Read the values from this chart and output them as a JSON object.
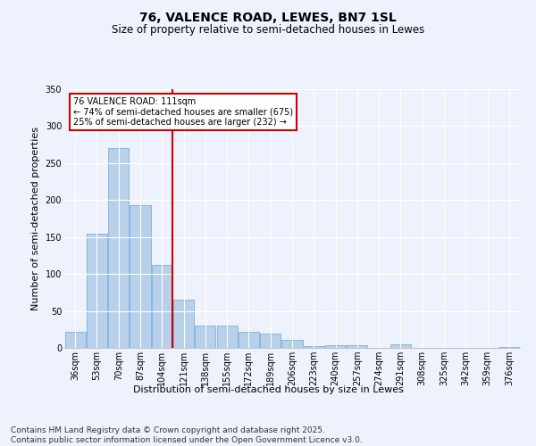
{
  "title": "76, VALENCE ROAD, LEWES, BN7 1SL",
  "subtitle": "Size of property relative to semi-detached houses in Lewes",
  "xlabel": "Distribution of semi-detached houses by size in Lewes",
  "ylabel": "Number of semi-detached properties",
  "categories": [
    "36sqm",
    "53sqm",
    "70sqm",
    "87sqm",
    "104sqm",
    "121sqm",
    "138sqm",
    "155sqm",
    "172sqm",
    "189sqm",
    "206sqm",
    "223sqm",
    "240sqm",
    "257sqm",
    "274sqm",
    "291sqm",
    "308sqm",
    "325sqm",
    "342sqm",
    "359sqm",
    "376sqm"
  ],
  "values": [
    22,
    155,
    270,
    193,
    112,
    65,
    30,
    30,
    22,
    19,
    11,
    2,
    4,
    4,
    0,
    5,
    0,
    0,
    0,
    0,
    1
  ],
  "bar_color": "#b8d0ea",
  "bar_edge_color": "#7aafe0",
  "vline_x": 4.5,
  "vline_color": "#cc0000",
  "ylim": [
    0,
    350
  ],
  "yticks": [
    0,
    50,
    100,
    150,
    200,
    250,
    300,
    350
  ],
  "annotation_text": "76 VALENCE ROAD: 111sqm\n← 74% of semi-detached houses are smaller (675)\n25% of semi-detached houses are larger (232) →",
  "annotation_box_color": "#cc0000",
  "footer": "Contains HM Land Registry data © Crown copyright and database right 2025.\nContains public sector information licensed under the Open Government Licence v3.0.",
  "bg_color": "#eef2fc",
  "plot_bg_color": "#eef2fc",
  "title_fontsize": 10,
  "subtitle_fontsize": 8.5,
  "label_fontsize": 8,
  "tick_fontsize": 7,
  "footer_fontsize": 6.5
}
